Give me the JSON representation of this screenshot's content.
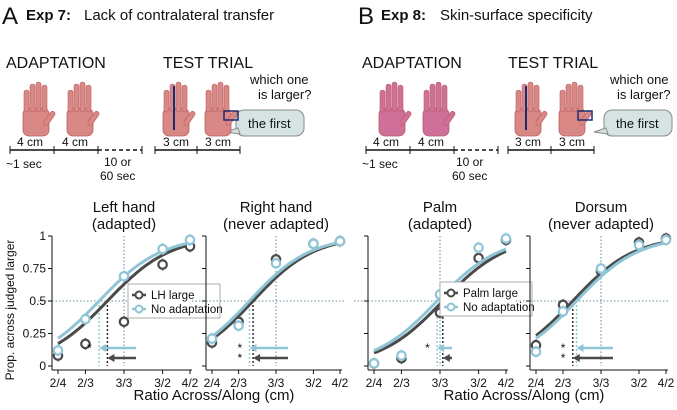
{
  "colors": {
    "lh_large": "#4a4a4a",
    "no_adapt": "#8fc5d6",
    "guide": "#2e6f7a",
    "hand_skin": "#d98886",
    "hand_palm": "#d06f9a",
    "bubble": "#d5e4e3"
  },
  "panels": [
    {
      "letter": "A",
      "exp": "Exp 7:",
      "subtitle": "Lack of contralateral transfer",
      "adaptation_label": "ADAPTATION",
      "test_label": "TEST TRIAL",
      "question": "which one\nis larger?",
      "answer": "the first",
      "dim_adapt_1": "4 cm",
      "dim_adapt_2": "4 cm",
      "dim_test_1": "3 cm",
      "dim_test_2": "3 cm",
      "time_1": "~1 sec",
      "time_2": "10 or\n60 sec"
    },
    {
      "letter": "B",
      "exp": "Exp 8:",
      "subtitle": "Skin-surface specificity",
      "adaptation_label": "ADAPTATION",
      "test_label": "TEST TRIAL",
      "question": "which one\nis larger?",
      "answer": "the first",
      "dim_adapt_1": "4 cm",
      "dim_adapt_2": "4 cm",
      "dim_test_1": "3 cm",
      "dim_test_2": "3 cm",
      "time_1": "~1 sec",
      "time_2": "10 or\n60 sec"
    }
  ],
  "ylabel": "Prop. across judged larger",
  "xlabel": "Ratio Across/Along (cm)",
  "chart_data": [
    {
      "type": "line",
      "title": "Left hand\n(adapted)",
      "categories": [
        "2/4",
        "2/3",
        "3/3",
        "3/2",
        "4/2"
      ],
      "x": [
        0.5,
        0.667,
        1.0,
        1.5,
        2.0
      ],
      "yticks": [
        "0",
        "0.25",
        "0.5",
        "0.75",
        "1"
      ],
      "ylim": [
        0,
        1
      ],
      "reference_y": 0.5,
      "series": [
        {
          "name": "LH large",
          "values": [
            0.08,
            0.17,
            0.34,
            0.78,
            0.92
          ]
        },
        {
          "name": "No adaptation",
          "values": [
            0.12,
            0.36,
            0.69,
            0.9,
            0.97
          ]
        }
      ],
      "pse": [
        0.84,
        0.77
      ],
      "legend": "center-right",
      "annotation": "*"
    },
    {
      "type": "line",
      "title": "Right hand\n(never adapted)",
      "categories": [
        "2/4",
        "2/3",
        "3/3",
        "3/2",
        "4/2"
      ],
      "x": [
        0.5,
        0.667,
        1.0,
        1.5,
        2.0
      ],
      "yticks": [],
      "ylim": [
        0,
        1
      ],
      "reference_y": 0.5,
      "series": [
        {
          "name": "LH large",
          "values": [
            0.18,
            0.34,
            0.82,
            0.94,
            0.96
          ]
        },
        {
          "name": "No adaptation",
          "values": [
            0.21,
            0.31,
            0.79,
            0.94,
            0.96
          ]
        }
      ],
      "pse": [
        0.78,
        0.75
      ],
      "annotation": "* *"
    },
    {
      "type": "line",
      "title": "Palm\n(adapted)",
      "categories": [
        "2/4",
        "2/3",
        "3/3",
        "3/2",
        "4/2"
      ],
      "x": [
        0.5,
        0.667,
        1.0,
        1.5,
        2.0
      ],
      "yticks": [],
      "ylim": [
        0,
        1
      ],
      "reference_y": 0.5,
      "series": [
        {
          "name": "Palm large",
          "values": [
            0.02,
            0.06,
            0.41,
            0.83,
            0.97
          ]
        },
        {
          "name": "No adaptation",
          "values": [
            0.02,
            0.08,
            0.55,
            0.91,
            0.98
          ]
        }
      ],
      "pse": [
        1.03,
        0.97
      ],
      "legend": "upper-right",
      "annotation": "*"
    },
    {
      "type": "line",
      "title": "Dorsum\n(never adapted)",
      "categories": [
        "2/4",
        "2/3",
        "3/3",
        "3/2",
        "4/2"
      ],
      "x": [
        0.5,
        0.667,
        1.0,
        1.5,
        2.0
      ],
      "yticks": [],
      "ylim": [
        0,
        1
      ],
      "reference_y": 0.5,
      "series": [
        {
          "name": "Palm large",
          "values": [
            0.16,
            0.47,
            0.73,
            0.95,
            0.98
          ]
        },
        {
          "name": "No adaptation",
          "values": [
            0.11,
            0.42,
            0.75,
            0.93,
            0.97
          ]
        }
      ],
      "pse": [
        0.74,
        0.77
      ],
      "annotation": "* *"
    }
  ]
}
